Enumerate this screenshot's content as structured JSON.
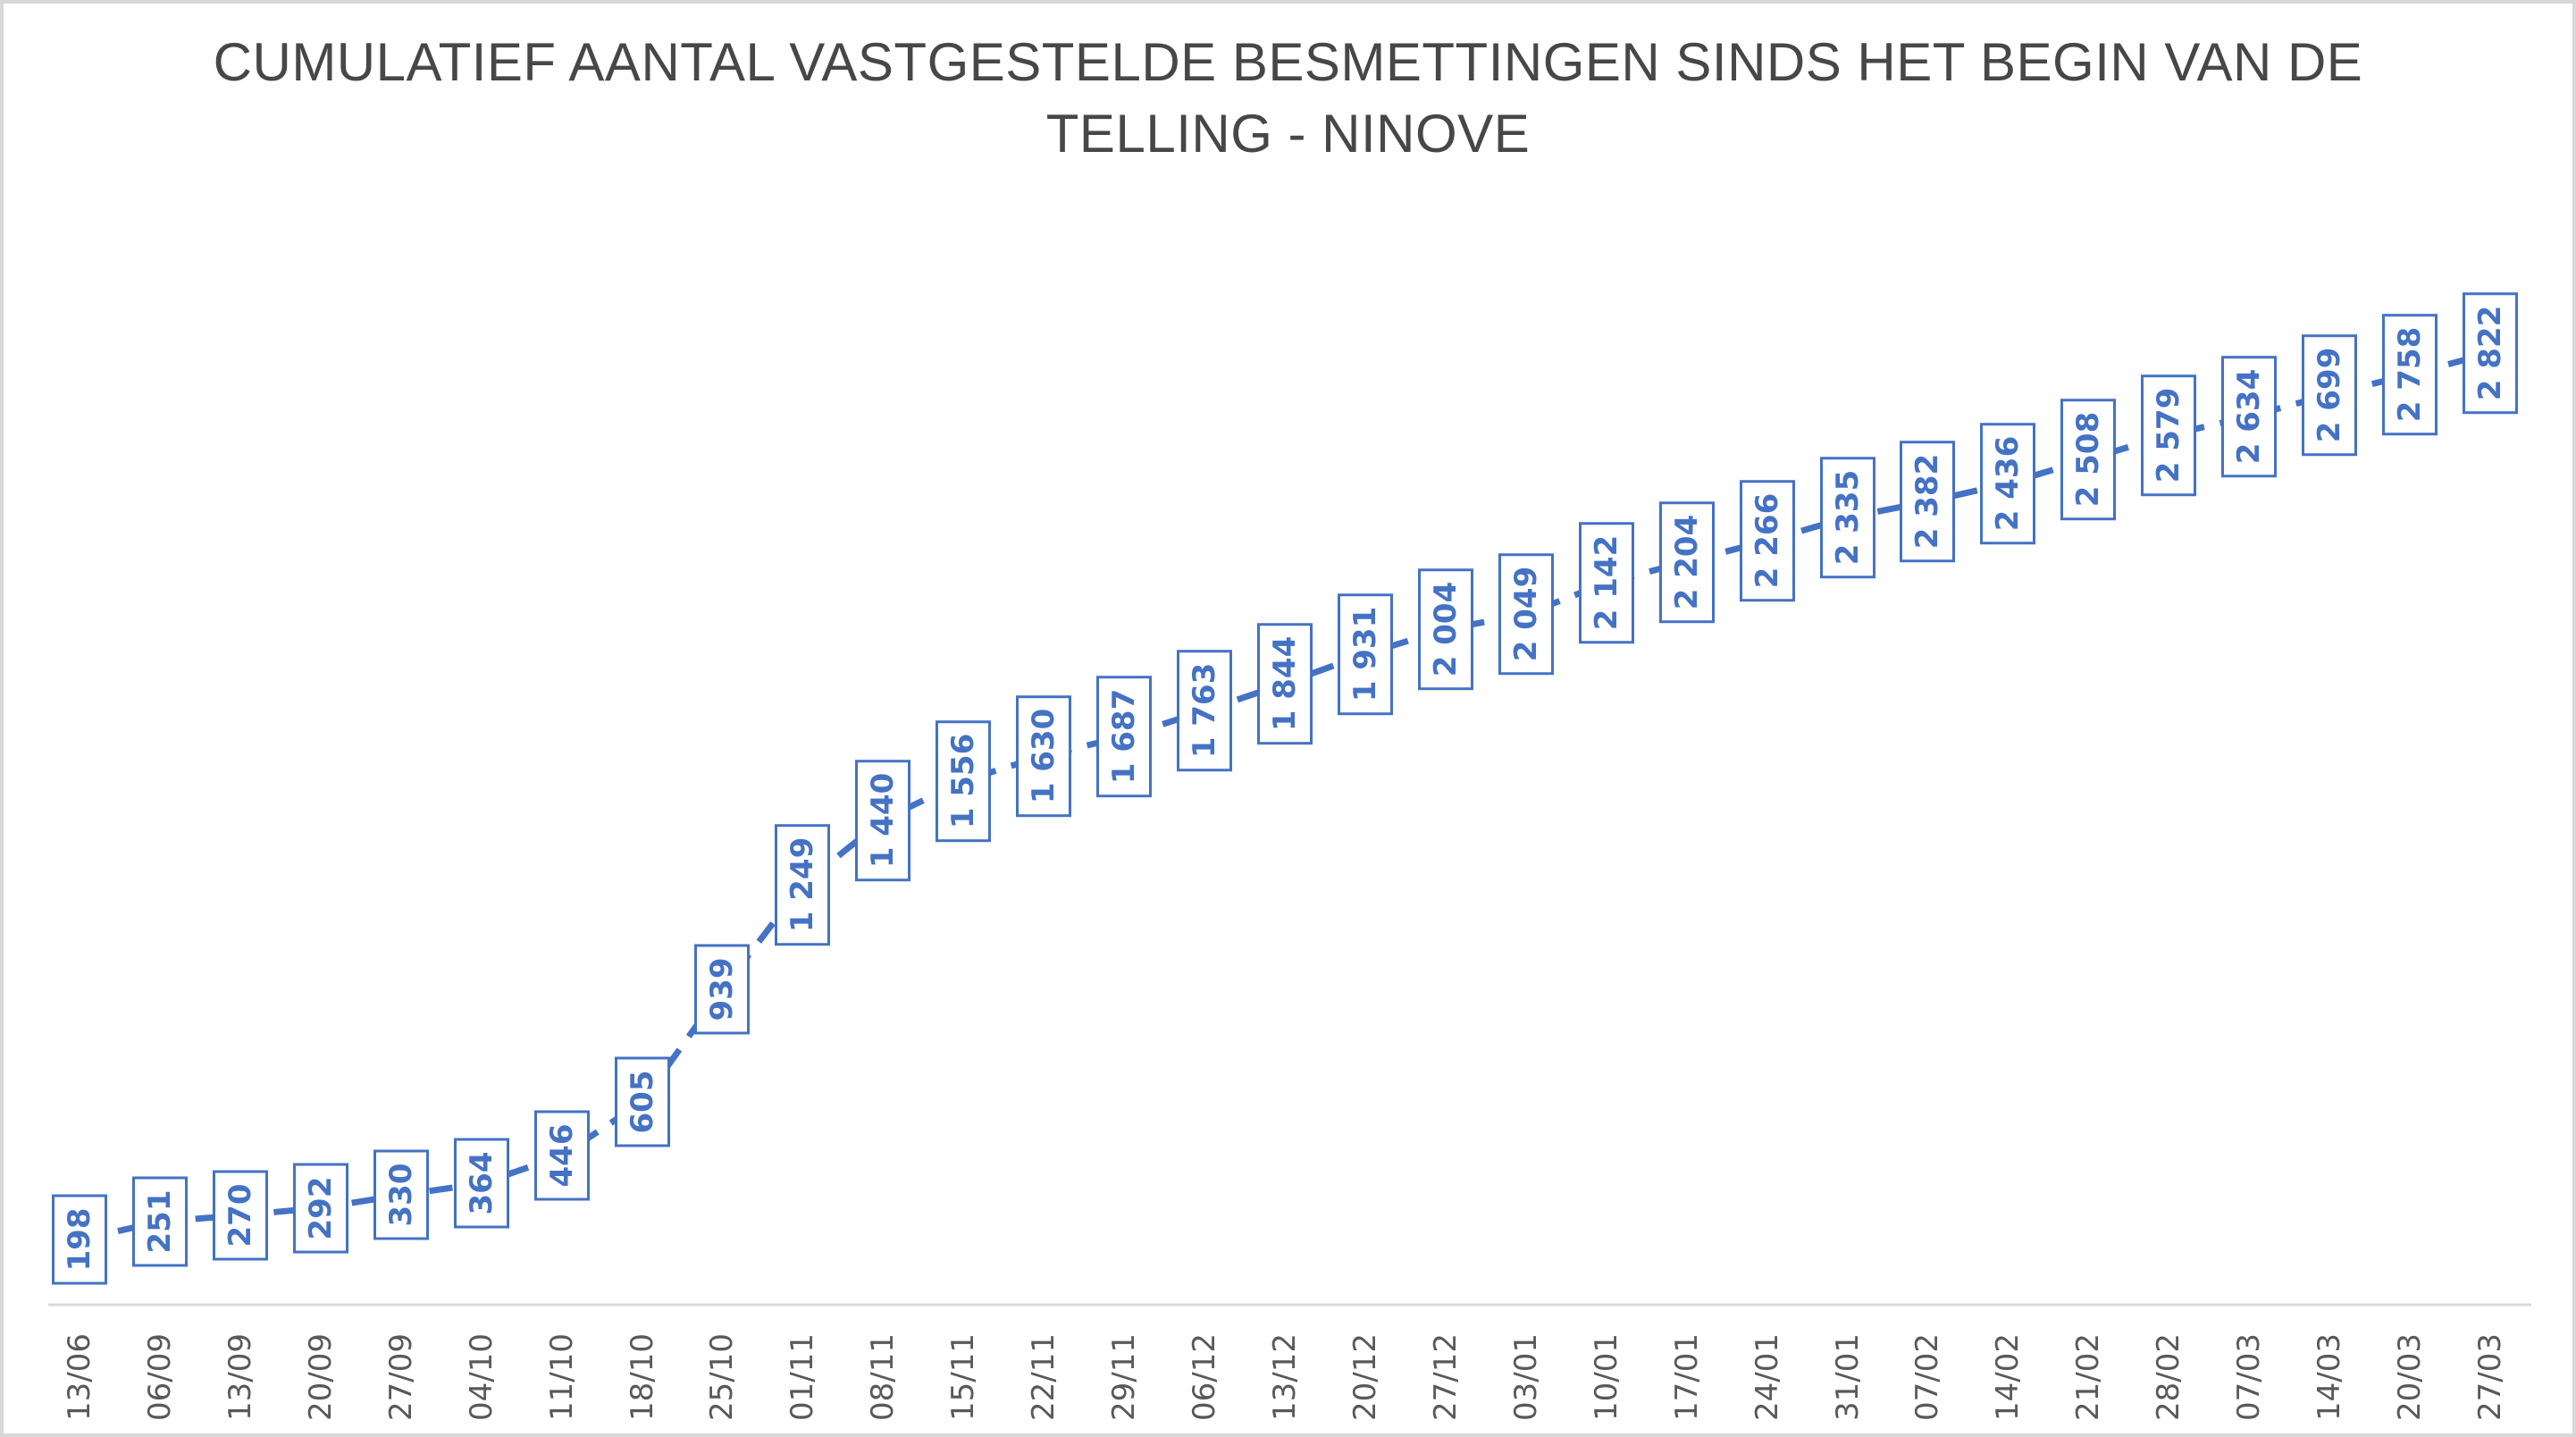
{
  "title": {
    "line1": "CUMULATIEF AANTAL VASTGESTELDE BESMETTINGEN SINDS HET BEGIN VAN DE",
    "line2": "TELLING - NINOVE"
  },
  "chart_data": {
    "type": "line",
    "title": "CUMULATIEF AANTAL VASTGESTELDE BESMETTINGEN SINDS HET BEGIN VAN DE TELLING - NINOVE",
    "categories": [
      "13/06",
      "06/09",
      "13/09",
      "20/09",
      "27/09",
      "04/10",
      "11/10",
      "18/10",
      "25/10",
      "01/11",
      "08/11",
      "15/11",
      "22/11",
      "29/11",
      "06/12",
      "13/12",
      "20/12",
      "27/12",
      "03/01",
      "10/01",
      "17/01",
      "24/01",
      "31/01",
      "07/02",
      "14/02",
      "21/02",
      "28/02",
      "07/03",
      "14/03",
      "20/03",
      "27/03"
    ],
    "values": [
      198,
      251,
      270,
      292,
      330,
      364,
      446,
      605,
      939,
      1249,
      1440,
      1556,
      1630,
      1687,
      1763,
      1844,
      1931,
      2004,
      2049,
      2142,
      2204,
      2266,
      2335,
      2382,
      2436,
      2508,
      2579,
      2634,
      2699,
      2758,
      2822
    ],
    "value_labels": [
      "198",
      "251",
      "270",
      "292",
      "330",
      "364",
      "446",
      "605",
      "939",
      "1 249",
      "1 440",
      "1 556",
      "1 630",
      "1 687",
      "1 763",
      "1 844",
      "1 931",
      "2 004",
      "2 049",
      "2 142",
      "2 204",
      "2 266",
      "2 335",
      "2 382",
      "2 436",
      "2 508",
      "2 579",
      "2 634",
      "2 699",
      "2 758",
      "2 822"
    ],
    "xlabel": "",
    "ylabel": "",
    "ylim": [
      0,
      3000
    ],
    "grid": false,
    "legend": "none",
    "line_style": "dashed",
    "label_boxes": true,
    "label_rotation_degrees": -90,
    "tick_rotation_degrees": -90,
    "colors": {
      "series": "#4472C4",
      "axis_line": "#D9D9D9",
      "tick_text": "#595959",
      "title_text": "#474747",
      "label_box_fill": "#FFFFFF"
    }
  }
}
